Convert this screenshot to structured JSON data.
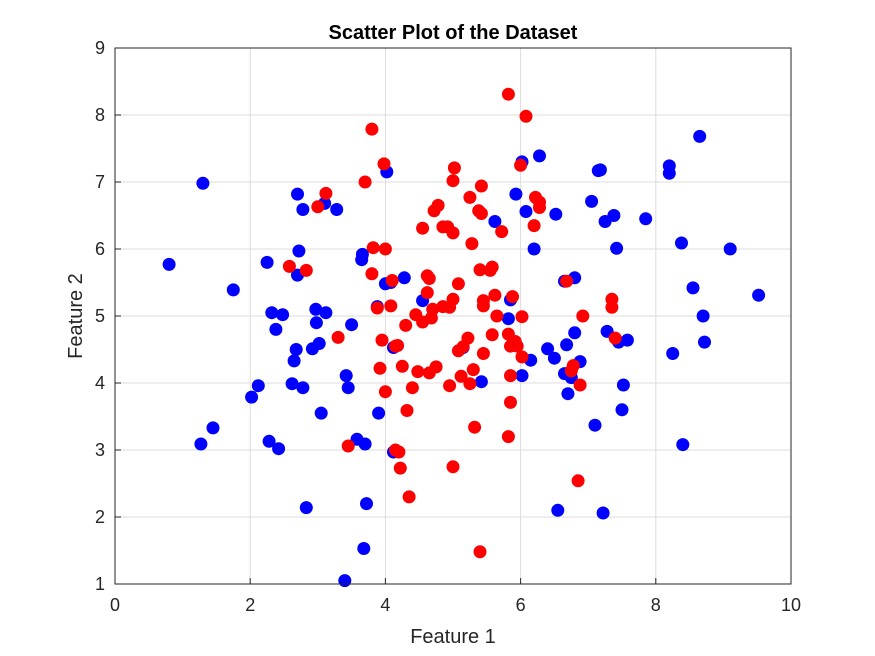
{
  "chart_data": {
    "type": "scatter",
    "title": "Scatter Plot of the Dataset",
    "xlabel": "Feature 1",
    "ylabel": "Feature 2",
    "xlim": [
      0,
      10
    ],
    "ylim": [
      1,
      9
    ],
    "xticks": [
      "0",
      "2",
      "4",
      "6",
      "8",
      "10"
    ],
    "yticks": [
      "1",
      "2",
      "3",
      "4",
      "5",
      "6",
      "7",
      "8",
      "9"
    ],
    "grid": true,
    "series": [
      {
        "color": "#0000ff",
        "points": [
          [
            0.8,
            5.77
          ],
          [
            1.3,
            6.98
          ],
          [
            1.27,
            3.09
          ],
          [
            1.45,
            3.33
          ],
          [
            1.75,
            5.39
          ],
          [
            2.02,
            3.79
          ],
          [
            2.12,
            3.96
          ],
          [
            2.25,
            5.8
          ],
          [
            2.28,
            3.13
          ],
          [
            2.32,
            5.05
          ],
          [
            2.38,
            4.8
          ],
          [
            2.42,
            3.02
          ],
          [
            2.48,
            5.02
          ],
          [
            2.62,
            3.99
          ],
          [
            2.65,
            4.33
          ],
          [
            2.68,
            4.5
          ],
          [
            2.7,
            5.61
          ],
          [
            2.72,
            5.97
          ],
          [
            2.7,
            6.82
          ],
          [
            2.78,
            6.59
          ],
          [
            2.78,
            3.93
          ],
          [
            2.83,
            2.14
          ],
          [
            2.92,
            4.51
          ],
          [
            2.97,
            5.1
          ],
          [
            2.98,
            4.9
          ],
          [
            3.02,
            4.59
          ],
          [
            3.05,
            3.55
          ],
          [
            3.12,
            5.05
          ],
          [
            3.1,
            6.68
          ],
          [
            3.28,
            6.59
          ],
          [
            3.42,
            4.11
          ],
          [
            3.45,
            3.93
          ],
          [
            3.5,
            4.87
          ],
          [
            3.58,
            3.16
          ],
          [
            3.4,
            1.05
          ],
          [
            3.65,
            5.84
          ],
          [
            3.66,
            5.92
          ],
          [
            3.7,
            3.09
          ],
          [
            3.72,
            2.2
          ],
          [
            3.68,
            1.53
          ],
          [
            3.88,
            5.14
          ],
          [
            3.9,
            3.55
          ],
          [
            4.02,
            7.15
          ],
          [
            4.0,
            5.48
          ],
          [
            4.08,
            5.5
          ],
          [
            4.12,
            4.53
          ],
          [
            4.12,
            2.97
          ],
          [
            4.28,
            5.57
          ],
          [
            4.55,
            5.23
          ],
          [
            5.15,
            4.53
          ],
          [
            5.42,
            4.02
          ],
          [
            5.62,
            6.41
          ],
          [
            5.82,
            4.96
          ],
          [
            5.85,
            5.24
          ],
          [
            5.93,
            6.82
          ],
          [
            6.02,
            4.11
          ],
          [
            6.02,
            7.3
          ],
          [
            6.08,
            6.56
          ],
          [
            6.15,
            4.34
          ],
          [
            6.2,
            6.0
          ],
          [
            6.28,
            7.39
          ],
          [
            6.4,
            4.51
          ],
          [
            6.5,
            4.37
          ],
          [
            6.52,
            6.52
          ],
          [
            6.55,
            2.1
          ],
          [
            6.65,
            5.52
          ],
          [
            6.68,
            4.57
          ],
          [
            6.65,
            4.14
          ],
          [
            6.7,
            3.84
          ],
          [
            6.75,
            4.08
          ],
          [
            6.8,
            5.57
          ],
          [
            6.8,
            4.75
          ],
          [
            6.88,
            4.32
          ],
          [
            7.05,
            6.71
          ],
          [
            7.1,
            3.37
          ],
          [
            7.15,
            7.17
          ],
          [
            7.18,
            7.18
          ],
          [
            7.22,
            2.06
          ],
          [
            7.25,
            6.41
          ],
          [
            7.28,
            4.77
          ],
          [
            7.38,
            6.5
          ],
          [
            7.42,
            6.01
          ],
          [
            7.45,
            4.61
          ],
          [
            7.52,
            3.97
          ],
          [
            7.5,
            3.6
          ],
          [
            7.58,
            4.64
          ],
          [
            7.85,
            6.45
          ],
          [
            8.2,
            7.24
          ],
          [
            8.2,
            7.13
          ],
          [
            8.25,
            4.44
          ],
          [
            8.38,
            6.09
          ],
          [
            8.4,
            3.08
          ],
          [
            8.55,
            5.42
          ],
          [
            8.65,
            7.68
          ],
          [
            8.7,
            5.0
          ],
          [
            8.72,
            4.61
          ],
          [
            9.1,
            6.0
          ],
          [
            9.52,
            5.31
          ]
        ]
      },
      {
        "color": "#ff0000",
        "points": [
          [
            2.58,
            5.74
          ],
          [
            2.83,
            5.68
          ],
          [
            3.0,
            6.63
          ],
          [
            3.12,
            6.83
          ],
          [
            3.3,
            4.68
          ],
          [
            3.45,
            3.06
          ],
          [
            3.7,
            7.0
          ],
          [
            3.8,
            7.79
          ],
          [
            3.8,
            5.63
          ],
          [
            3.82,
            6.02
          ],
          [
            3.88,
            5.12
          ],
          [
            3.92,
            4.22
          ],
          [
            3.95,
            4.64
          ],
          [
            3.98,
            7.27
          ],
          [
            4.0,
            6.0
          ],
          [
            4.0,
            3.87
          ],
          [
            4.08,
            5.15
          ],
          [
            4.1,
            5.53
          ],
          [
            4.15,
            4.55
          ],
          [
            4.15,
            3.0
          ],
          [
            4.18,
            4.56
          ],
          [
            4.2,
            2.97
          ],
          [
            4.22,
            2.73
          ],
          [
            4.25,
            4.25
          ],
          [
            4.3,
            4.86
          ],
          [
            4.32,
            3.59
          ],
          [
            4.35,
            2.3
          ],
          [
            4.4,
            3.93
          ],
          [
            4.45,
            5.02
          ],
          [
            4.48,
            4.17
          ],
          [
            4.55,
            6.31
          ],
          [
            4.55,
            4.91
          ],
          [
            4.62,
            5.35
          ],
          [
            4.62,
            5.6
          ],
          [
            4.65,
            5.56
          ],
          [
            4.65,
            4.15
          ],
          [
            4.68,
            4.97
          ],
          [
            4.7,
            5.1
          ],
          [
            4.72,
            6.57
          ],
          [
            4.75,
            4.24
          ],
          [
            4.78,
            6.65
          ],
          [
            4.85,
            5.14
          ],
          [
            4.85,
            6.33
          ],
          [
            4.92,
            6.33
          ],
          [
            4.95,
            5.13
          ],
          [
            4.95,
            3.96
          ],
          [
            5.0,
            5.25
          ],
          [
            5.0,
            6.24
          ],
          [
            5.0,
            7.02
          ],
          [
            5.02,
            7.21
          ],
          [
            5.0,
            2.75
          ],
          [
            5.08,
            5.48
          ],
          [
            5.08,
            4.48
          ],
          [
            5.12,
            4.1
          ],
          [
            5.15,
            4.54
          ],
          [
            5.22,
            4.67
          ],
          [
            5.25,
            6.77
          ],
          [
            5.25,
            3.99
          ],
          [
            5.28,
            6.08
          ],
          [
            5.3,
            4.2
          ],
          [
            5.32,
            3.34
          ],
          [
            5.38,
            6.57
          ],
          [
            5.4,
            5.69
          ],
          [
            5.42,
            6.94
          ],
          [
            5.42,
            6.53
          ],
          [
            5.45,
            5.15
          ],
          [
            5.45,
            5.23
          ],
          [
            5.45,
            4.44
          ],
          [
            5.4,
            1.48
          ],
          [
            5.55,
            5.68
          ],
          [
            5.58,
            5.73
          ],
          [
            5.58,
            4.72
          ],
          [
            5.62,
            5.31
          ],
          [
            5.65,
            5.0
          ],
          [
            5.72,
            6.26
          ],
          [
            5.82,
            8.31
          ],
          [
            5.82,
            4.73
          ],
          [
            5.85,
            4.55
          ],
          [
            5.85,
            4.11
          ],
          [
            5.85,
            3.71
          ],
          [
            5.82,
            3.2
          ],
          [
            5.88,
            5.29
          ],
          [
            5.92,
            4.62
          ],
          [
            5.95,
            4.55
          ],
          [
            6.0,
            7.25
          ],
          [
            6.02,
            4.99
          ],
          [
            6.02,
            4.39
          ],
          [
            6.08,
            7.98
          ],
          [
            6.2,
            6.35
          ],
          [
            6.22,
            6.77
          ],
          [
            6.28,
            6.7
          ],
          [
            6.28,
            6.62
          ],
          [
            6.68,
            5.52
          ],
          [
            6.75,
            4.18
          ],
          [
            6.78,
            4.26
          ],
          [
            6.85,
            2.54
          ],
          [
            6.88,
            3.97
          ],
          [
            6.92,
            5.0
          ],
          [
            7.35,
            5.25
          ],
          [
            7.35,
            5.13
          ],
          [
            7.4,
            4.67
          ]
        ]
      }
    ]
  }
}
